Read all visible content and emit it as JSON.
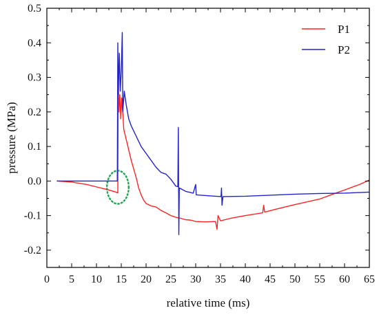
{
  "chart_data": {
    "type": "line",
    "title": "",
    "xlabel": "relative time (ms)",
    "ylabel": "pressure (MPa)",
    "xlim": [
      0,
      65
    ],
    "ylim": [
      -0.25,
      0.5
    ],
    "xticks": [
      0,
      5,
      10,
      15,
      20,
      25,
      30,
      35,
      40,
      45,
      50,
      55,
      60,
      65
    ],
    "yticks": [
      -0.2,
      -0.1,
      0.0,
      0.1,
      0.2,
      0.3,
      0.4,
      0.5
    ],
    "ytick_labels": [
      "-0.2",
      "-0.1",
      "0.0",
      "0.1",
      "0.2",
      "0.3",
      "0.4",
      "0.5"
    ],
    "grid": false,
    "legend_position": "top-right",
    "series": [
      {
        "name": "P1",
        "color": "#ff2222",
        "points": [
          [
            2,
            0.0
          ],
          [
            5,
            -0.003
          ],
          [
            8,
            -0.01
          ],
          [
            10,
            -0.017
          ],
          [
            12,
            -0.024
          ],
          [
            13.5,
            -0.03
          ],
          [
            14.3,
            -0.034
          ],
          [
            14.4,
            0.31
          ],
          [
            14.5,
            0.2
          ],
          [
            14.7,
            0.25
          ],
          [
            14.9,
            0.18
          ],
          [
            15.1,
            0.24
          ],
          [
            15.3,
            0.2
          ],
          [
            15.5,
            0.15
          ],
          [
            16,
            0.12
          ],
          [
            16.5,
            0.09
          ],
          [
            17,
            0.06
          ],
          [
            17.5,
            0.035
          ],
          [
            18,
            0.01
          ],
          [
            18.5,
            -0.02
          ],
          [
            19,
            -0.04
          ],
          [
            19.5,
            -0.055
          ],
          [
            20,
            -0.065
          ],
          [
            21,
            -0.072
          ],
          [
            22,
            -0.075
          ],
          [
            23,
            -0.085
          ],
          [
            24,
            -0.092
          ],
          [
            25,
            -0.1
          ],
          [
            26,
            -0.105
          ],
          [
            27,
            -0.108
          ],
          [
            28,
            -0.112
          ],
          [
            29,
            -0.113
          ],
          [
            30,
            -0.117
          ],
          [
            32,
            -0.118
          ],
          [
            34,
            -0.117
          ],
          [
            34.3,
            -0.14
          ],
          [
            34.5,
            -0.1
          ],
          [
            35,
            -0.115
          ],
          [
            37,
            -0.108
          ],
          [
            40,
            -0.1
          ],
          [
            43.5,
            -0.092
          ],
          [
            43.7,
            -0.07
          ],
          [
            43.9,
            -0.09
          ],
          [
            46,
            -0.082
          ],
          [
            50,
            -0.068
          ],
          [
            55,
            -0.052
          ],
          [
            58,
            -0.036
          ],
          [
            60,
            -0.026
          ],
          [
            63,
            -0.01
          ],
          [
            65,
            0.003
          ]
        ]
      },
      {
        "name": "P2",
        "color": "#2222cc",
        "points": [
          [
            2,
            0.0
          ],
          [
            14.2,
            0.0
          ],
          [
            14.3,
            0.4
          ],
          [
            14.4,
            0.25
          ],
          [
            14.6,
            0.37
          ],
          [
            14.8,
            0.26
          ],
          [
            15.0,
            0.32
          ],
          [
            15.2,
            0.43
          ],
          [
            15.3,
            0.2
          ],
          [
            15.6,
            0.26
          ],
          [
            16,
            0.22
          ],
          [
            16.5,
            0.18
          ],
          [
            17,
            0.16
          ],
          [
            18,
            0.13
          ],
          [
            19,
            0.1
          ],
          [
            20,
            0.08
          ],
          [
            21,
            0.06
          ],
          [
            22,
            0.04
          ],
          [
            23,
            0.025
          ],
          [
            24,
            0.02
          ],
          [
            25,
            0.005
          ],
          [
            26,
            -0.015
          ],
          [
            26.4,
            -0.016
          ],
          [
            26.5,
            0.155
          ],
          [
            26.6,
            -0.155
          ],
          [
            26.7,
            -0.02
          ],
          [
            28,
            -0.03
          ],
          [
            29.5,
            -0.035
          ],
          [
            30,
            -0.01
          ],
          [
            30.1,
            -0.04
          ],
          [
            32,
            -0.042
          ],
          [
            34,
            -0.044
          ],
          [
            35.1,
            -0.045
          ],
          [
            35.2,
            -0.02
          ],
          [
            35.3,
            -0.07
          ],
          [
            35.5,
            -0.045
          ],
          [
            40,
            -0.044
          ],
          [
            45,
            -0.041
          ],
          [
            50,
            -0.038
          ],
          [
            55,
            -0.036
          ],
          [
            60,
            -0.035
          ],
          [
            65,
            -0.032
          ]
        ]
      }
    ],
    "annotations": [
      {
        "type": "dotted-circle",
        "color": "#22aa55",
        "center": [
          14.3,
          -0.018
        ],
        "radius_x_units": 2.2,
        "radius_y_units": 0.048
      }
    ]
  }
}
